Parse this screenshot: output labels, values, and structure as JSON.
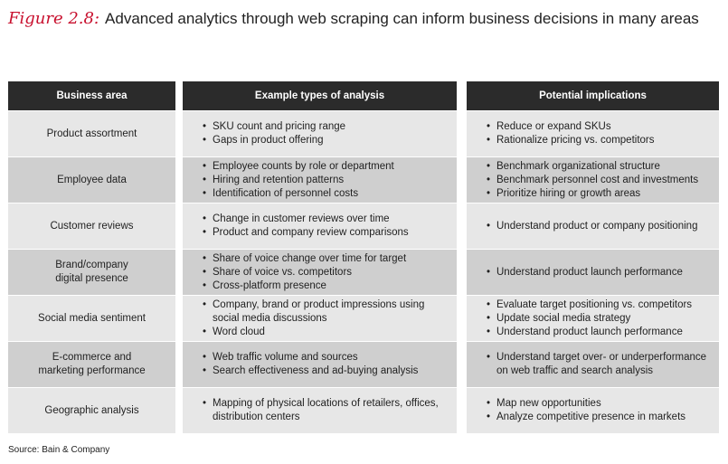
{
  "title": {
    "figure_label": "Figure 2.8:",
    "caption": "Advanced analytics through web scraping can inform business decisions in many areas"
  },
  "table": {
    "headers": [
      "Business area",
      "Example types of analysis",
      "Potential implications"
    ],
    "rows": [
      {
        "area": [
          "Product assortment"
        ],
        "analysis": [
          "SKU count and pricing range",
          "Gaps in product offering"
        ],
        "implications": [
          "Reduce or expand SKUs",
          "Rationalize pricing vs. competitors"
        ]
      },
      {
        "area": [
          "Employee data"
        ],
        "analysis": [
          "Employee counts by role or department",
          "Hiring and retention patterns",
          "Identification of personnel costs"
        ],
        "implications": [
          "Benchmark organizational structure",
          "Benchmark personnel cost and investments",
          "Prioritize hiring or growth areas"
        ]
      },
      {
        "area": [
          "Customer reviews"
        ],
        "analysis": [
          "Change in customer reviews over time",
          "Product and company review comparisons"
        ],
        "implications": [
          "Understand product or company positioning"
        ]
      },
      {
        "area": [
          "Brand/company",
          "digital presence"
        ],
        "analysis": [
          "Share of voice change over time for target",
          "Share of voice vs. competitors",
          "Cross-platform presence"
        ],
        "implications": [
          "Understand product launch performance"
        ]
      },
      {
        "area": [
          "Social media sentiment"
        ],
        "analysis": [
          "Company, brand or product impressions using social media discussions",
          "Word cloud"
        ],
        "implications": [
          "Evaluate target positioning vs. competitors",
          "Update social media strategy",
          "Understand product launch performance"
        ]
      },
      {
        "area": [
          "E-commerce and",
          "marketing performance"
        ],
        "analysis": [
          "Web traffic volume and sources",
          "Search effectiveness and ad-buying analysis"
        ],
        "implications": [
          "Understand target over- or underperformance on web traffic and search analysis"
        ]
      },
      {
        "area": [
          "Geographic analysis"
        ],
        "analysis": [
          "Mapping of physical locations of retailers, offices, distribution centers"
        ],
        "implications": [
          "Map new opportunities",
          "Analyze competitive presence in markets"
        ]
      }
    ]
  },
  "source": "Source: Bain & Company",
  "colors": {
    "figure_label": "#c8102e",
    "header_bg": "#2b2b2b",
    "row_light": "#e7e7e7",
    "row_dark": "#cfcfcf"
  }
}
